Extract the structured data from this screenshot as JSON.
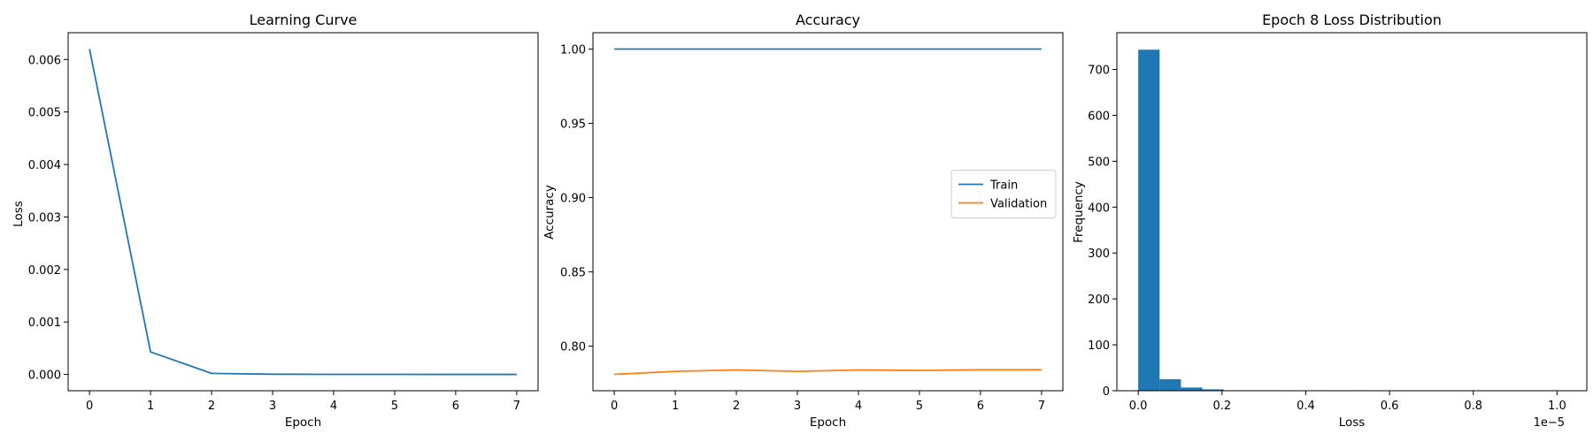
{
  "chart_data": [
    {
      "type": "line",
      "title": "Learning Curve",
      "xlabel": "Epoch",
      "ylabel": "Loss",
      "x": [
        0,
        1,
        2,
        3,
        4,
        5,
        6,
        7
      ],
      "xlim": [
        -0.35,
        7.35
      ],
      "ylim": [
        -0.00031,
        0.00651
      ],
      "xticks": [
        0,
        1,
        2,
        3,
        4,
        5,
        6,
        7
      ],
      "yticks": [
        0.0,
        0.001,
        0.002,
        0.003,
        0.004,
        0.005,
        0.006
      ],
      "ytick_labels": [
        "0.000",
        "0.001",
        "0.002",
        "0.003",
        "0.004",
        "0.005",
        "0.006"
      ],
      "series": [
        {
          "values": [
            0.0062,
            0.00043,
            2e-05,
            5e-06,
            2e-06,
            1e-06,
            5e-07,
            2e-07
          ],
          "color": "#1f77b4"
        }
      ],
      "grid": false
    },
    {
      "type": "line",
      "title": "Accuracy",
      "xlabel": "Epoch",
      "ylabel": "Accuracy",
      "x": [
        0,
        1,
        2,
        3,
        4,
        5,
        6,
        7
      ],
      "xlim": [
        -0.35,
        7.35
      ],
      "ylim": [
        0.77,
        1.011
      ],
      "xticks": [
        0,
        1,
        2,
        3,
        4,
        5,
        6,
        7
      ],
      "yticks": [
        0.8,
        0.85,
        0.9,
        0.95,
        1.0
      ],
      "ytick_labels": [
        "0.80",
        "0.85",
        "0.90",
        "0.95",
        "1.00"
      ],
      "series": [
        {
          "name": "Train",
          "values": [
            1.0,
            1.0,
            1.0,
            1.0,
            1.0,
            1.0,
            1.0,
            1.0
          ],
          "color": "#1f77b4"
        },
        {
          "name": "Validation",
          "values": [
            0.781,
            0.783,
            0.784,
            0.783,
            0.784,
            0.7837,
            0.7841,
            0.7841
          ],
          "color": "#ff7f0e"
        }
      ],
      "legend": "center-right",
      "grid": false
    },
    {
      "type": "bar",
      "title": "Epoch 8 Loss Distribution",
      "xlabel": "Loss",
      "ylabel": "Frequency",
      "x_offset_text": "1e−5",
      "xlim": [
        -0.051,
        1.071
      ],
      "ylim": [
        0,
        780
      ],
      "xticks": [
        0.0,
        0.2,
        0.4,
        0.6,
        0.8,
        1.0
      ],
      "xtick_labels": [
        "0.0",
        "0.2",
        "0.4",
        "0.6",
        "0.8",
        "1.0"
      ],
      "yticks": [
        0,
        100,
        200,
        300,
        400,
        500,
        600,
        700
      ],
      "ytick_labels": [
        "0",
        "100",
        "200",
        "300",
        "400",
        "500",
        "600",
        "700"
      ],
      "bin_edges": [
        0.0,
        0.051,
        0.102,
        0.153,
        0.204,
        0.255,
        0.306,
        0.357,
        0.408,
        0.459,
        0.51,
        0.561,
        0.612,
        0.663,
        0.714,
        0.765,
        0.816,
        0.867,
        0.918,
        0.969,
        1.02
      ],
      "values": [
        743,
        25,
        7,
        3,
        1,
        1,
        1,
        0,
        1,
        0,
        1,
        0,
        0,
        0,
        0,
        0,
        0,
        0,
        0,
        1
      ],
      "color": "#1f77b4",
      "grid": false
    }
  ]
}
